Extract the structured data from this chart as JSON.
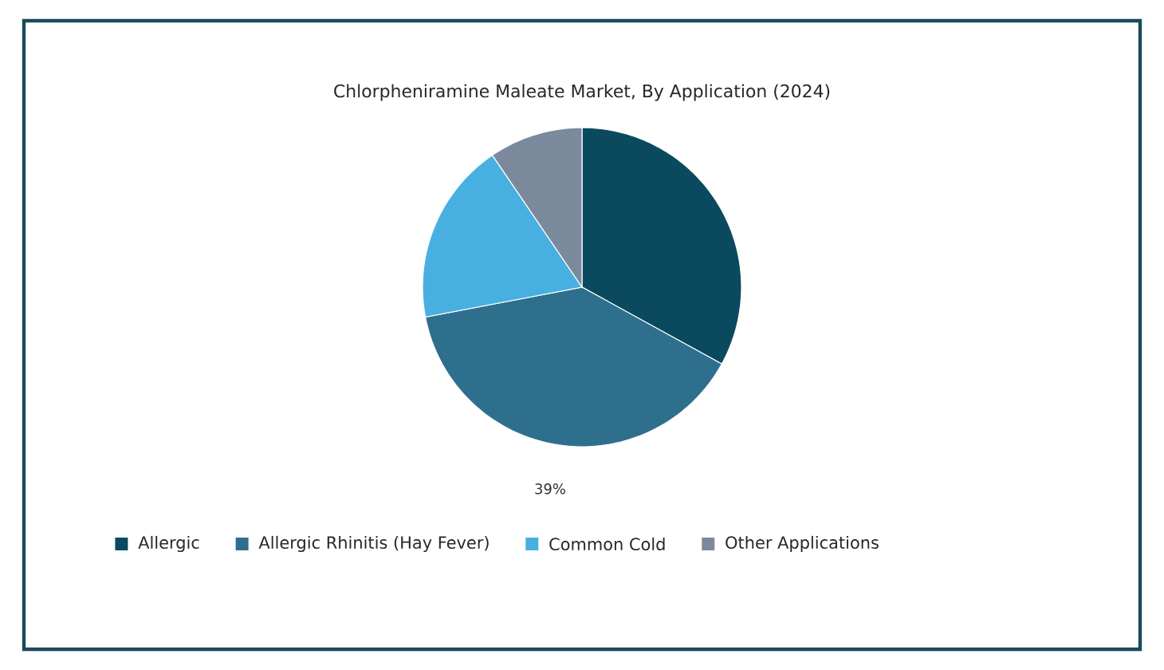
{
  "chart_data": {
    "type": "pie",
    "title": "Chlorpheniramine Maleate Market, By Application (2024)",
    "categories": [
      "Allergic",
      "Allergic Rhinitis (Hay Fever)",
      "Common Cold",
      "Other Applications"
    ],
    "values": [
      33,
      39,
      18.5,
      9.5
    ],
    "colors": [
      "#0b4a5e",
      "#2e6f8e",
      "#48b0e0",
      "#7a8a9c"
    ],
    "value_labels": [
      null,
      "39%",
      null,
      null
    ],
    "legend": "bottom"
  }
}
